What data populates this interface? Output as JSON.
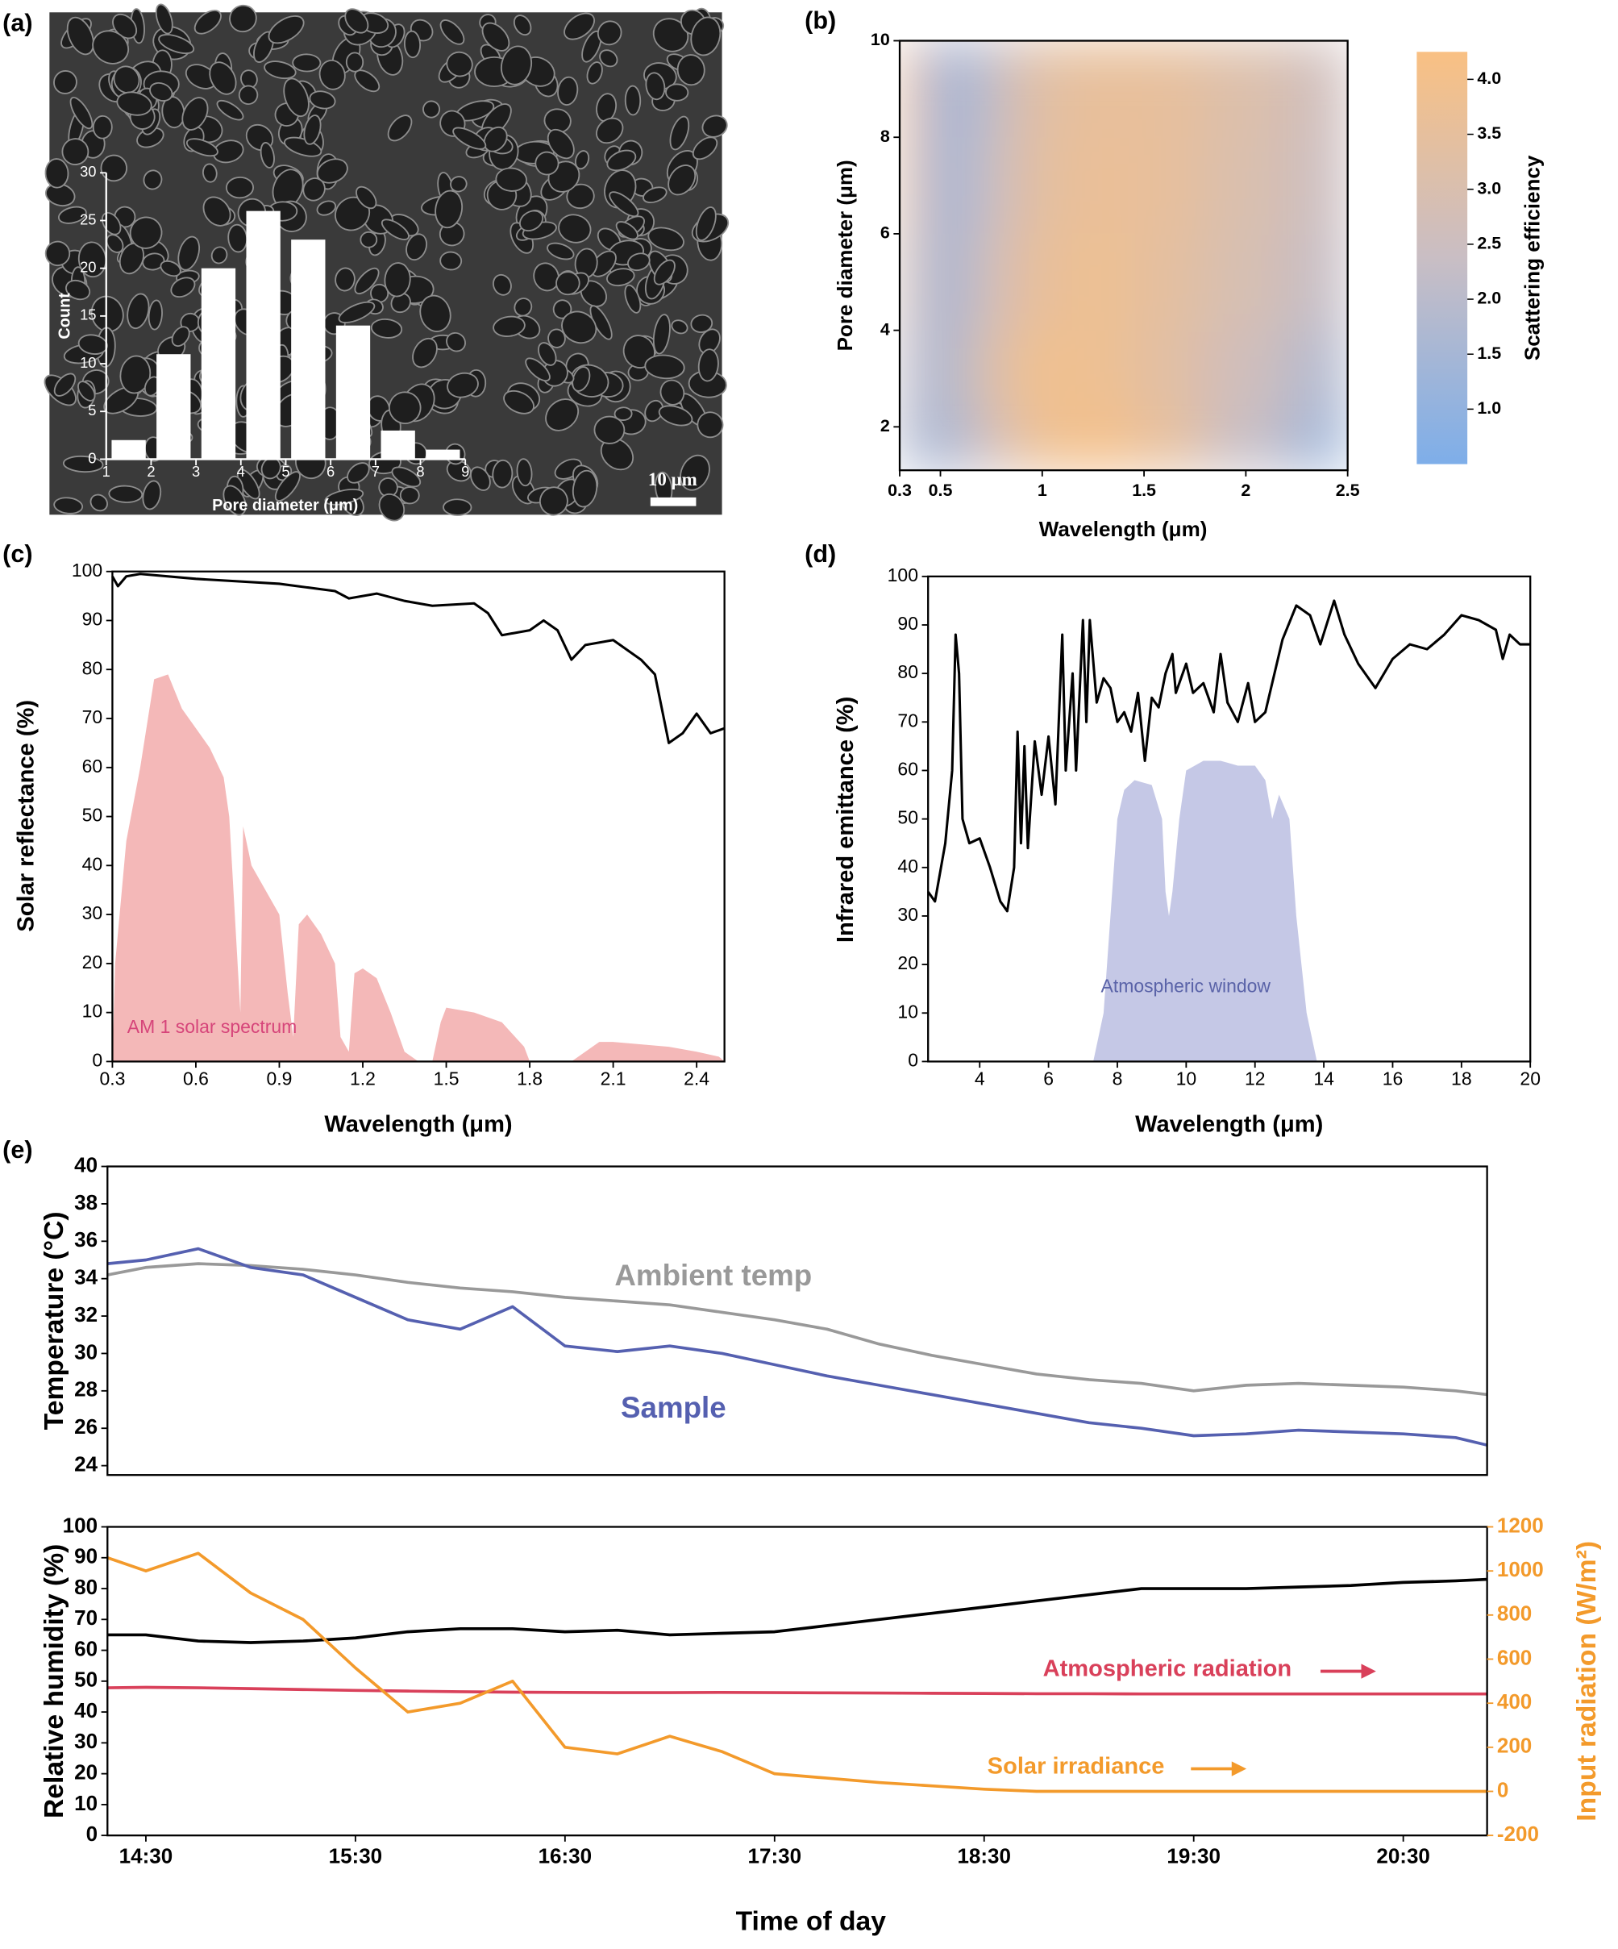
{
  "chart_data": [
    {
      "type": "histogram",
      "panel_label": "(a)",
      "scale_bar": "10 μm",
      "x_label": "Pore diameter (μm)",
      "y_label": "Count",
      "bins": [
        1,
        2,
        3,
        4,
        5,
        6,
        7,
        8,
        9
      ],
      "counts": [
        2,
        11,
        20,
        26,
        23,
        14,
        3,
        1
      ],
      "color": "#ffffff",
      "xlim": [
        1,
        9
      ],
      "xticks": [
        1,
        2,
        3,
        4,
        5,
        6,
        7,
        8,
        9
      ],
      "ylim": [
        0,
        30
      ],
      "yticks": [
        0,
        5,
        10,
        15,
        20,
        25,
        30
      ]
    },
    {
      "type": "heatmap",
      "panel_label": "(b)",
      "x_label": "Wavelength (μm)",
      "y_label": "Pore diameter (μm)",
      "colorbar_label": "Scattering efficiency",
      "x": [
        0.35,
        0.5,
        0.7,
        1,
        1.3,
        1.6,
        2,
        2.4
      ],
      "y": [
        1.5,
        3,
        5,
        7,
        9
      ],
      "z": [
        [
          2.0,
          1.3,
          2.5,
          3.8,
          4.1,
          3.5,
          2.3,
          1.3
        ],
        [
          2.5,
          1.3,
          3.0,
          3.9,
          3.8,
          3.3,
          2.6,
          1.8
        ],
        [
          3.2,
          1.1,
          2.6,
          3.6,
          3.8,
          3.4,
          2.9,
          2.3
        ],
        [
          3.8,
          1.0,
          2.3,
          3.4,
          3.7,
          3.5,
          3.0,
          2.5
        ],
        [
          4.0,
          1.0,
          2.1,
          3.3,
          3.6,
          3.5,
          3.1,
          2.6
        ]
      ],
      "colors": [
        "#7eaee9",
        "#c9bec4",
        "#f9c083"
      ],
      "zlim": [
        0.5,
        4.25
      ],
      "zticks": [
        {
          "value": 1,
          "label": "1.0"
        },
        {
          "value": 1.5,
          "label": "1.5"
        },
        {
          "value": 2,
          "label": "2.0"
        },
        {
          "value": 2.5,
          "label": "2.5"
        },
        {
          "value": 3,
          "label": "3.0"
        },
        {
          "value": 3.5,
          "label": "3.5"
        },
        {
          "value": 4,
          "label": "4.0"
        }
      ],
      "xlim": [
        0.3,
        2.5
      ],
      "xticks": [
        0.3,
        0.5,
        1,
        1.5,
        2,
        2.5
      ],
      "ylim": [
        1.1,
        10
      ],
      "yticks": [
        2,
        4,
        6,
        8,
        10
      ]
    },
    {
      "type": "line",
      "panel_label": "(c)",
      "x_label": "Wavelength (μm)",
      "y_label": "Solar reflectance (%)",
      "annotation": "AM 1 solar spectrum",
      "annotation_color": "#d6457a",
      "xlim": [
        0.3,
        2.5
      ],
      "xticks": [
        0.3,
        0.6,
        0.9,
        1.2,
        1.5,
        1.8,
        2.1,
        2.4
      ],
      "ylim": [
        0,
        100
      ],
      "yticks": [
        0,
        10,
        20,
        30,
        40,
        50,
        60,
        70,
        80,
        90,
        100
      ],
      "series": [
        {
          "style": "area",
          "color": "#f4b8b8",
          "x": [
            0.3,
            0.31,
            0.35,
            0.4,
            0.45,
            0.5,
            0.55,
            0.6,
            0.65,
            0.7,
            0.72,
            0.76,
            0.77,
            0.8,
            0.9,
            0.93,
            0.95,
            0.97,
            1.0,
            1.05,
            1.1,
            1.12,
            1.15,
            1.17,
            1.2,
            1.25,
            1.3,
            1.35,
            1.4,
            1.45,
            1.48,
            1.5,
            1.6,
            1.7,
            1.78,
            1.8,
            1.95,
            2.0,
            2.05,
            2.1,
            2.2,
            2.3,
            2.4,
            2.48,
            2.5
          ],
          "values": [
            0,
            20,
            45,
            60,
            78,
            79,
            72,
            68,
            64,
            58,
            50,
            10,
            48,
            40,
            30,
            14,
            5,
            28,
            30,
            26,
            20,
            5,
            2,
            18,
            19,
            17,
            10,
            2,
            0,
            0,
            8,
            11,
            10,
            8,
            3,
            0,
            0,
            2,
            4,
            4,
            3.5,
            3,
            2,
            1,
            0
          ]
        },
        {
          "style": "line",
          "color": "#000000",
          "x": [
            0.3,
            0.32,
            0.35,
            0.4,
            0.6,
            0.9,
            1.1,
            1.15,
            1.25,
            1.35,
            1.45,
            1.6,
            1.65,
            1.7,
            1.8,
            1.85,
            1.9,
            1.95,
            2.0,
            2.1,
            2.2,
            2.25,
            2.3,
            2.35,
            2.4,
            2.45,
            2.5
          ],
          "values": [
            99,
            97,
            99,
            99.5,
            98.5,
            97.5,
            96,
            94.5,
            95.5,
            94,
            93,
            93.5,
            91.5,
            87,
            88,
            90,
            88,
            82,
            85,
            86,
            82,
            79,
            65,
            67,
            71,
            67,
            68
          ]
        }
      ]
    },
    {
      "type": "line",
      "panel_label": "(d)",
      "x_label": "Wavelength (μm)",
      "y_label": "Infrared emittance (%)",
      "annotation": "Atmospheric window",
      "annotation_color": "#5a63a8",
      "xlim": [
        2.5,
        20
      ],
      "xticks": [
        4,
        6,
        8,
        10,
        12,
        14,
        16,
        18,
        20
      ],
      "ylim": [
        0,
        100
      ],
      "yticks": [
        0,
        10,
        20,
        30,
        40,
        50,
        60,
        70,
        80,
        90,
        100
      ],
      "series": [
        {
          "style": "area",
          "color": "#c5c8e6",
          "x": [
            7.3,
            7.6,
            7.8,
            8.0,
            8.2,
            8.5,
            9.0,
            9.3,
            9.4,
            9.5,
            9.6,
            9.8,
            10.0,
            10.5,
            11.0,
            11.5,
            12.0,
            12.3,
            12.5,
            12.7,
            13.0,
            13.2,
            13.5,
            13.8
          ],
          "values": [
            0,
            10,
            30,
            50,
            56,
            58,
            57,
            50,
            35,
            30,
            35,
            50,
            60,
            62,
            62,
            61,
            61,
            58,
            50,
            55,
            50,
            30,
            10,
            0
          ]
        },
        {
          "style": "line",
          "color": "#000000",
          "x": [
            2.5,
            2.7,
            3.0,
            3.2,
            3.3,
            3.4,
            3.5,
            3.7,
            4.0,
            4.3,
            4.6,
            4.8,
            5.0,
            5.1,
            5.2,
            5.3,
            5.4,
            5.6,
            5.8,
            6.0,
            6.2,
            6.4,
            6.5,
            6.7,
            6.8,
            7.0,
            7.1,
            7.2,
            7.4,
            7.6,
            7.8,
            8.0,
            8.2,
            8.4,
            8.6,
            8.8,
            9.0,
            9.2,
            9.4,
            9.6,
            9.7,
            10.0,
            10.2,
            10.5,
            10.8,
            11.0,
            11.2,
            11.5,
            11.8,
            12.0,
            12.3,
            12.8,
            13.2,
            13.6,
            13.9,
            14.3,
            14.6,
            15.0,
            15.5,
            16.0,
            16.5,
            17.0,
            17.5,
            18.0,
            18.5,
            19.0,
            19.2,
            19.4,
            19.7,
            20
          ],
          "values": [
            35,
            33,
            45,
            60,
            88,
            80,
            50,
            45,
            46,
            40,
            33,
            31,
            40,
            68,
            45,
            65,
            44,
            66,
            55,
            67,
            53,
            88,
            60,
            80,
            60,
            91,
            70,
            91,
            74,
            79,
            77,
            70,
            72,
            68,
            76,
            62,
            75,
            73,
            80,
            84,
            76,
            82,
            76,
            78,
            72,
            84,
            74,
            70,
            78,
            70,
            72,
            87,
            94,
            92,
            86,
            95,
            88,
            82,
            77,
            83,
            86,
            85,
            88,
            92,
            91,
            89,
            83,
            88,
            86,
            86
          ]
        }
      ]
    },
    {
      "type": "line",
      "panel_label": "(e)",
      "y_label": "Temperature (°C)",
      "x": [
        "14:19",
        "14:30",
        "14:45",
        "15:00",
        "15:15",
        "15:30",
        "15:45",
        "16:00",
        "16:15",
        "16:30",
        "16:45",
        "17:00",
        "17:15",
        "17:30",
        "17:45",
        "18:00",
        "18:15",
        "18:30",
        "18:45",
        "19:00",
        "19:15",
        "19:30",
        "19:45",
        "20:00",
        "20:15",
        "20:30",
        "20:45",
        "20:54"
      ],
      "xlim": [
        "14:19",
        "20:54"
      ],
      "ylim": [
        23.5,
        40
      ],
      "yticks": [
        24,
        26,
        28,
        30,
        32,
        34,
        36,
        38,
        40
      ],
      "series": [
        {
          "name": "Ambient temp",
          "color": "#999999",
          "values": [
            34.2,
            34.6,
            34.8,
            34.7,
            34.5,
            34.2,
            33.8,
            33.5,
            33.3,
            33.0,
            32.8,
            32.6,
            32.2,
            31.8,
            31.3,
            30.5,
            29.9,
            29.4,
            28.9,
            28.6,
            28.4,
            28.0,
            28.3,
            28.4,
            28.3,
            28.2,
            28.0,
            27.8
          ]
        },
        {
          "name": "Sample",
          "color": "#5560b0",
          "values": [
            34.8,
            35.0,
            35.6,
            34.6,
            34.2,
            33.0,
            31.8,
            31.3,
            32.5,
            30.4,
            30.1,
            30.4,
            30.0,
            29.4,
            28.8,
            28.3,
            27.8,
            27.3,
            26.8,
            26.3,
            26.0,
            25.6,
            25.7,
            25.9,
            25.8,
            25.7,
            25.5,
            25.1
          ]
        }
      ]
    },
    {
      "type": "line",
      "x_label": "Time of day",
      "y_label": "Relative humidity (%)",
      "y2_label": "Input radiation (W/m²)",
      "x": [
        "14:19",
        "14:30",
        "14:45",
        "15:00",
        "15:15",
        "15:30",
        "15:45",
        "16:00",
        "16:15",
        "16:30",
        "16:45",
        "17:00",
        "17:15",
        "17:30",
        "17:45",
        "18:00",
        "18:15",
        "18:30",
        "18:45",
        "19:00",
        "19:15",
        "19:30",
        "19:45",
        "20:00",
        "20:15",
        "20:30",
        "20:45",
        "20:54"
      ],
      "xlim": [
        "14:19",
        "20:54"
      ],
      "xticks": [
        "14:30",
        "15:30",
        "16:30",
        "17:30",
        "18:30",
        "19:30",
        "20:30"
      ],
      "ylim": [
        0,
        100
      ],
      "yticks": [
        0,
        10,
        20,
        30,
        40,
        50,
        60,
        70,
        80,
        90,
        100
      ],
      "y2lim": [
        -200,
        1200
      ],
      "y2ticks": [
        -200,
        0,
        200,
        400,
        600,
        800,
        1000,
        1200
      ],
      "series": [
        {
          "color": "#000000",
          "values": [
            65,
            65,
            63,
            62.5,
            63,
            64,
            66,
            67,
            67,
            66,
            66.5,
            65,
            65.5,
            66,
            68,
            70,
            72,
            74,
            76,
            78,
            80,
            80,
            80,
            80.5,
            81,
            82,
            82.5,
            83
          ]
        },
        {
          "name": "Atmospheric radiation",
          "color": "#d9405a",
          "axis": "y2",
          "values": [
            470,
            472,
            470,
            466,
            462,
            458,
            455,
            452,
            450,
            449,
            448,
            448,
            449,
            448,
            447,
            446,
            445,
            444,
            443,
            443,
            442,
            442,
            442,
            442,
            442,
            442,
            442,
            442
          ]
        },
        {
          "name": "Solar irradiance",
          "color": "#f39a2b",
          "axis": "y2",
          "values": [
            1060,
            1000,
            1080,
            900,
            780,
            560,
            360,
            400,
            500,
            200,
            170,
            250,
            180,
            80,
            60,
            40,
            25,
            10,
            0,
            0,
            0,
            0,
            0,
            0,
            0,
            0,
            0,
            0
          ]
        }
      ]
    }
  ]
}
